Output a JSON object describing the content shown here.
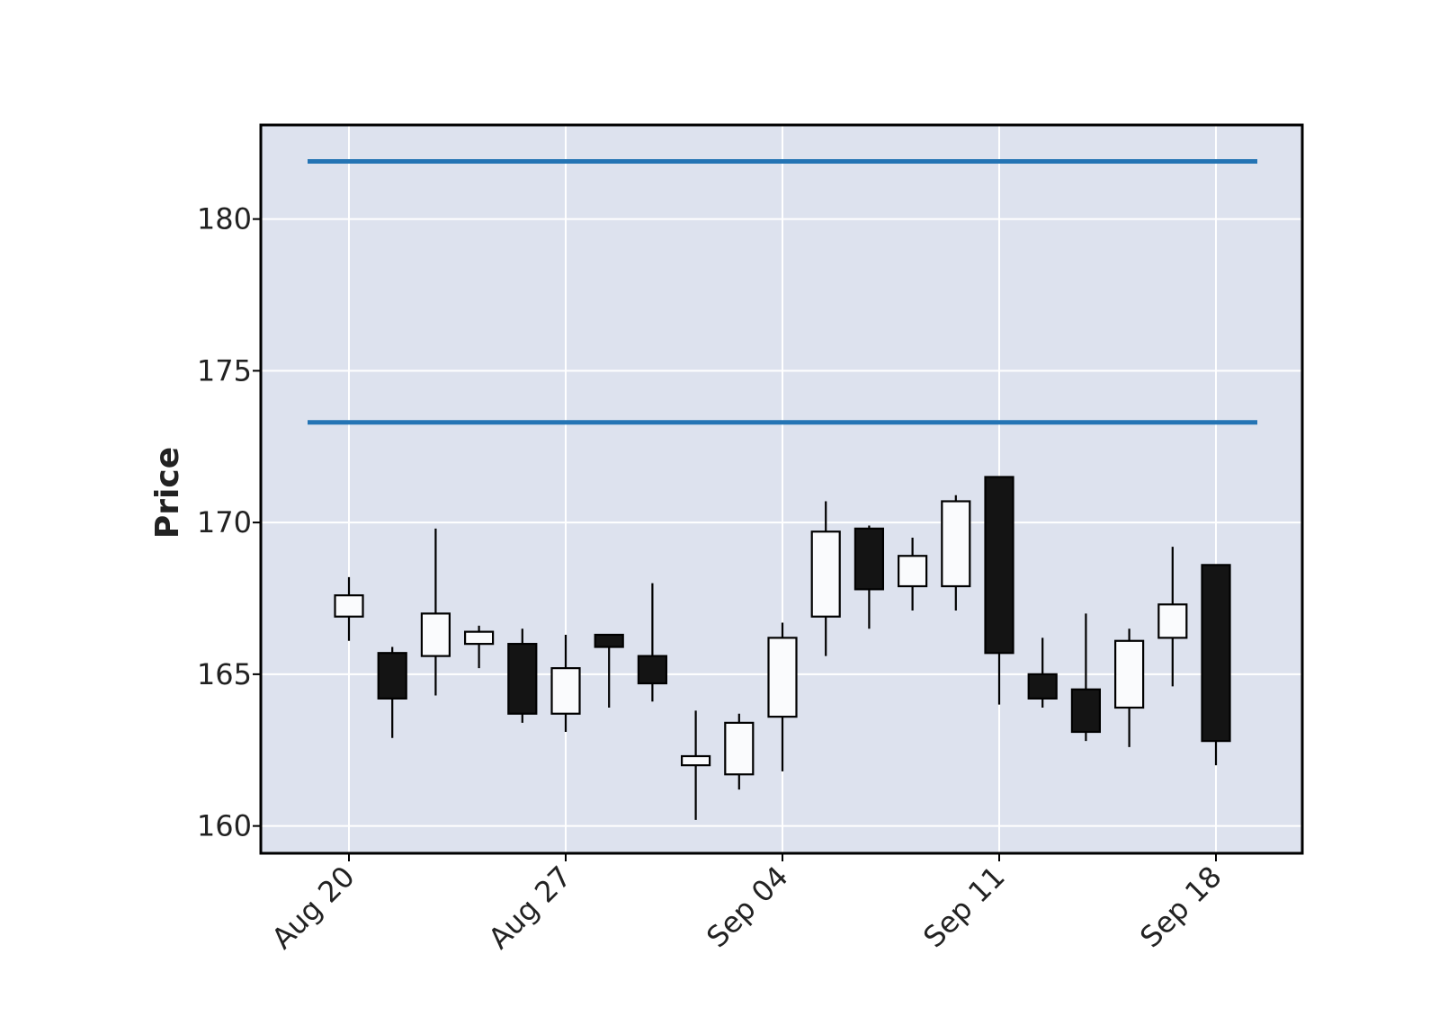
{
  "chart_data": {
    "type": "candlestick",
    "title": "",
    "xlabel": "",
    "ylabel": "Price",
    "ylim": [
      159.1,
      183.1
    ],
    "yticks": [
      160,
      165,
      170,
      175,
      180
    ],
    "ytick_labels": [
      "160",
      "165",
      "170",
      "175",
      "180"
    ],
    "xticks": [
      {
        "label": "Aug 20",
        "index": 0
      },
      {
        "label": "Aug 27",
        "index": 5
      },
      {
        "label": "Sep 04",
        "index": 10
      },
      {
        "label": "Sep 11",
        "index": 15
      },
      {
        "label": "Sep 18",
        "index": 20
      }
    ],
    "grid": true,
    "colors": {
      "background": "#dde2ee",
      "grid": "#ffffff",
      "up_fill": "#fafbfd",
      "down_fill": "#141414",
      "edge": "#000000",
      "hline": "#2474b4"
    },
    "hlines": [
      181.9,
      173.3
    ],
    "candles": [
      {
        "open": 166.9,
        "high": 168.2,
        "low": 166.1,
        "close": 167.6
      },
      {
        "open": 165.7,
        "high": 165.9,
        "low": 162.9,
        "close": 164.2
      },
      {
        "open": 165.6,
        "high": 169.8,
        "low": 164.3,
        "close": 167.0
      },
      {
        "open": 166.0,
        "high": 166.6,
        "low": 165.2,
        "close": 166.4
      },
      {
        "open": 166.0,
        "high": 166.5,
        "low": 163.4,
        "close": 163.7
      },
      {
        "open": 163.7,
        "high": 166.3,
        "low": 163.1,
        "close": 165.2
      },
      {
        "open": 166.3,
        "high": 166.3,
        "low": 163.9,
        "close": 165.9
      },
      {
        "open": 165.6,
        "high": 168.0,
        "low": 164.1,
        "close": 164.7
      },
      {
        "open": 162.0,
        "high": 163.8,
        "low": 160.2,
        "close": 162.3
      },
      {
        "open": 161.7,
        "high": 163.7,
        "low": 161.2,
        "close": 163.4
      },
      {
        "open": 163.6,
        "high": 166.7,
        "low": 161.8,
        "close": 166.2
      },
      {
        "open": 166.9,
        "high": 170.7,
        "low": 165.6,
        "close": 169.7
      },
      {
        "open": 169.8,
        "high": 169.9,
        "low": 166.5,
        "close": 167.8
      },
      {
        "open": 167.9,
        "high": 169.5,
        "low": 167.1,
        "close": 168.9
      },
      {
        "open": 167.9,
        "high": 170.9,
        "low": 167.1,
        "close": 170.7
      },
      {
        "open": 171.5,
        "high": 171.5,
        "low": 164.0,
        "close": 165.7
      },
      {
        "open": 165.0,
        "high": 166.2,
        "low": 163.9,
        "close": 164.2
      },
      {
        "open": 164.5,
        "high": 167.0,
        "low": 162.8,
        "close": 163.1
      },
      {
        "open": 163.9,
        "high": 166.5,
        "low": 162.6,
        "close": 166.1
      },
      {
        "open": 166.2,
        "high": 169.2,
        "low": 164.6,
        "close": 167.3
      },
      {
        "open": 168.6,
        "high": 168.6,
        "low": 162.0,
        "close": 162.8
      }
    ]
  }
}
